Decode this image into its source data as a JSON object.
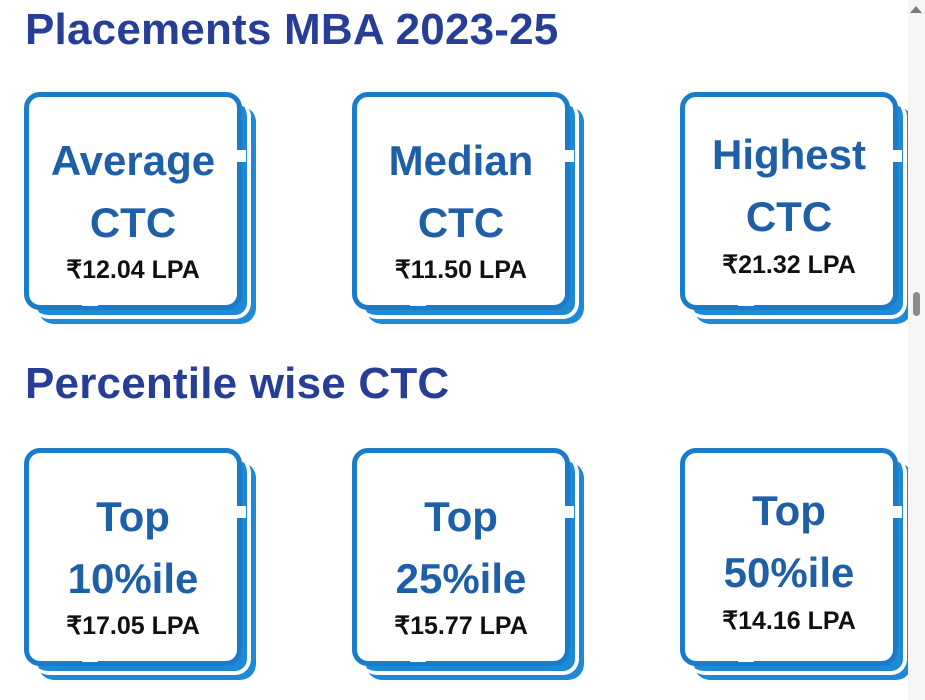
{
  "sections": [
    {
      "title": "Placements MBA 2023-25",
      "cards": [
        {
          "line1": "Average",
          "line2": "CTC",
          "value": "₹12.04 LPA"
        },
        {
          "line1": "Median",
          "line2": "CTC",
          "value": "₹11.50 LPA"
        },
        {
          "line1": "Highest",
          "line2": "CTC",
          "value": "₹21.32 LPA"
        }
      ]
    },
    {
      "title": "Percentile wise CTC",
      "cards": [
        {
          "line1": "Top",
          "line2": "10%ile",
          "value": "₹17.05 LPA"
        },
        {
          "line1": "Top",
          "line2": "25%ile",
          "value": "₹15.77 LPA"
        },
        {
          "line1": "Top",
          "line2": "50%ile",
          "value": "₹14.16 LPA"
        }
      ]
    }
  ],
  "colors": {
    "heading": "#263e96",
    "card_label": "#1f5fa8",
    "card_border": "#1a7cc8",
    "card_shadow": "#1e8ad6",
    "value_text": "#111111"
  },
  "scrollbar": {
    "up_arrow_icon": "chevron-up-icon"
  }
}
